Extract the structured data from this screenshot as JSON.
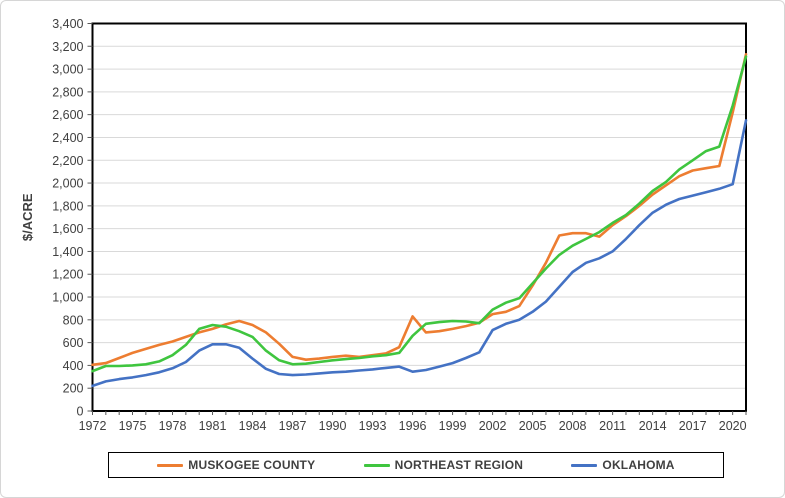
{
  "chart_data": {
    "type": "line",
    "title": "",
    "xlabel": "",
    "ylabel": "$/ACRE",
    "ylim": [
      0,
      3400
    ],
    "ytick_step": 200,
    "grid": "horizontal",
    "legend_position": "bottom",
    "x": [
      1972,
      1973,
      1974,
      1975,
      1976,
      1977,
      1978,
      1979,
      1980,
      1981,
      1982,
      1983,
      1984,
      1985,
      1986,
      1987,
      1988,
      1989,
      1990,
      1991,
      1992,
      1993,
      1994,
      1995,
      1996,
      1997,
      1998,
      1999,
      2000,
      2001,
      2002,
      2003,
      2004,
      2005,
      2006,
      2007,
      2008,
      2009,
      2010,
      2011,
      2012,
      2013,
      2014,
      2015,
      2016,
      2017,
      2018,
      2019,
      2020,
      2021
    ],
    "xtick_labels": [
      "1972",
      "1975",
      "1978",
      "1981",
      "1984",
      "1987",
      "1990",
      "1993",
      "1996",
      "1999",
      "2002",
      "2005",
      "2008",
      "2011",
      "2014",
      "2017",
      "2020"
    ],
    "series": [
      {
        "name": "MUSKOGEE COUNTY",
        "color": "#ED7D31",
        "values": [
          405,
          420,
          465,
          510,
          545,
          580,
          610,
          650,
          690,
          720,
          760,
          790,
          755,
          690,
          590,
          475,
          450,
          460,
          475,
          485,
          475,
          490,
          505,
          560,
          830,
          690,
          700,
          720,
          745,
          775,
          850,
          870,
          920,
          1100,
          1300,
          1540,
          1560,
          1560,
          1530,
          1630,
          1710,
          1800,
          1900,
          1980,
          2060,
          2110,
          2130,
          2150,
          2620,
          3130
        ]
      },
      {
        "name": "NORTHEAST REGION",
        "color": "#3FC53F",
        "values": [
          350,
          395,
          395,
          400,
          410,
          435,
          490,
          580,
          720,
          755,
          740,
          700,
          650,
          530,
          445,
          410,
          415,
          430,
          445,
          455,
          465,
          480,
          490,
          510,
          660,
          765,
          780,
          790,
          785,
          770,
          890,
          950,
          990,
          1120,
          1250,
          1370,
          1450,
          1510,
          1570,
          1650,
          1720,
          1820,
          1930,
          2010,
          2120,
          2200,
          2280,
          2320,
          2680,
          3110
        ]
      },
      {
        "name": "OKLAHOMA",
        "color": "#4472C4",
        "values": [
          220,
          260,
          280,
          295,
          315,
          340,
          375,
          430,
          530,
          585,
          585,
          555,
          460,
          370,
          325,
          315,
          320,
          330,
          340,
          345,
          355,
          365,
          378,
          390,
          345,
          360,
          390,
          420,
          465,
          515,
          710,
          765,
          800,
          870,
          960,
          1090,
          1220,
          1300,
          1340,
          1400,
          1510,
          1630,
          1740,
          1810,
          1860,
          1890,
          1920,
          1950,
          1990,
          2550
        ]
      }
    ],
    "axis_text_color": "#404040",
    "gridline_color": "#D9D9D9",
    "plot_border_color": "#000000"
  }
}
